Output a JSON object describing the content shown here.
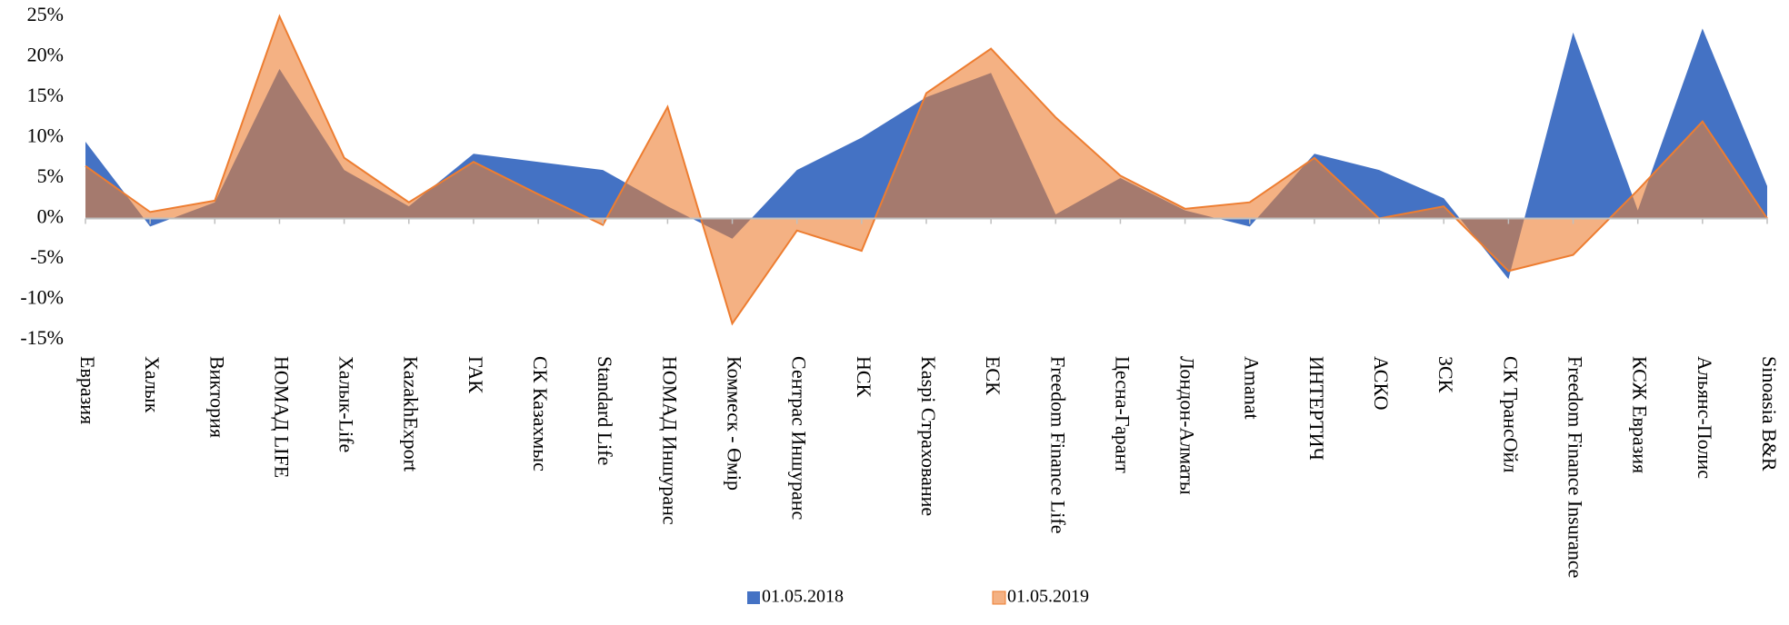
{
  "chart_data": {
    "type": "area",
    "categories": [
      "Евразия",
      "Халык",
      "Виктория",
      "НОМАД LIFE",
      "Халык-Life",
      "KazakhExport",
      "ГАК",
      "СК Казахмыс",
      "Standard Life",
      "НОМАД Иншуранс",
      "Коммеск - Өмір",
      "Сентрас Иншуранс",
      "НСК",
      "Kaspi Страхование",
      "ЕСК",
      "Freedom Finance Life",
      "Цесна-Гарант",
      "Лондон-Алматы",
      "Amanat",
      "ИНТЕРТИЧ",
      "АСКО",
      "ЗСК",
      "СК ТрансОйл",
      "Freedom Finance Insurance",
      "КСЖ Евразия",
      "Альянс-Полис",
      "Sinoasia B&R"
    ],
    "series": [
      {
        "name": "01.05.2018",
        "color": "#4472c4",
        "values": [
          9.5,
          -1,
          2,
          18.5,
          6,
          1.5,
          8,
          7,
          6,
          1.5,
          -2.5,
          6,
          10,
          15,
          18,
          0.5,
          5,
          1,
          -1,
          8,
          6,
          2.5,
          -7.5,
          23,
          1,
          23.5,
          4
        ]
      },
      {
        "name": "01.05.2019",
        "color": "#f4b183",
        "values": [
          6.5,
          0.8,
          2.2,
          25,
          7.5,
          2,
          7,
          3,
          -0.8,
          13.8,
          -13,
          -1.5,
          -4,
          15.5,
          21,
          12.5,
          5.3,
          1.2,
          2,
          7.5,
          0,
          1.5,
          -6.5,
          -4.5,
          3.5,
          12,
          0
        ]
      }
    ],
    "ylim": [
      -15,
      25
    ],
    "yticks": [
      {
        "value": -15,
        "label": "-15%"
      },
      {
        "value": -10,
        "label": "-10%"
      },
      {
        "value": -5,
        "label": "-5%"
      },
      {
        "value": 0,
        "label": "0%"
      },
      {
        "value": 5,
        "label": "5%"
      },
      {
        "value": 10,
        "label": "10%"
      },
      {
        "value": 15,
        "label": "15%"
      },
      {
        "value": 20,
        "label": "20%"
      },
      {
        "value": 25,
        "label": "25%"
      }
    ],
    "legend": "bottom"
  }
}
